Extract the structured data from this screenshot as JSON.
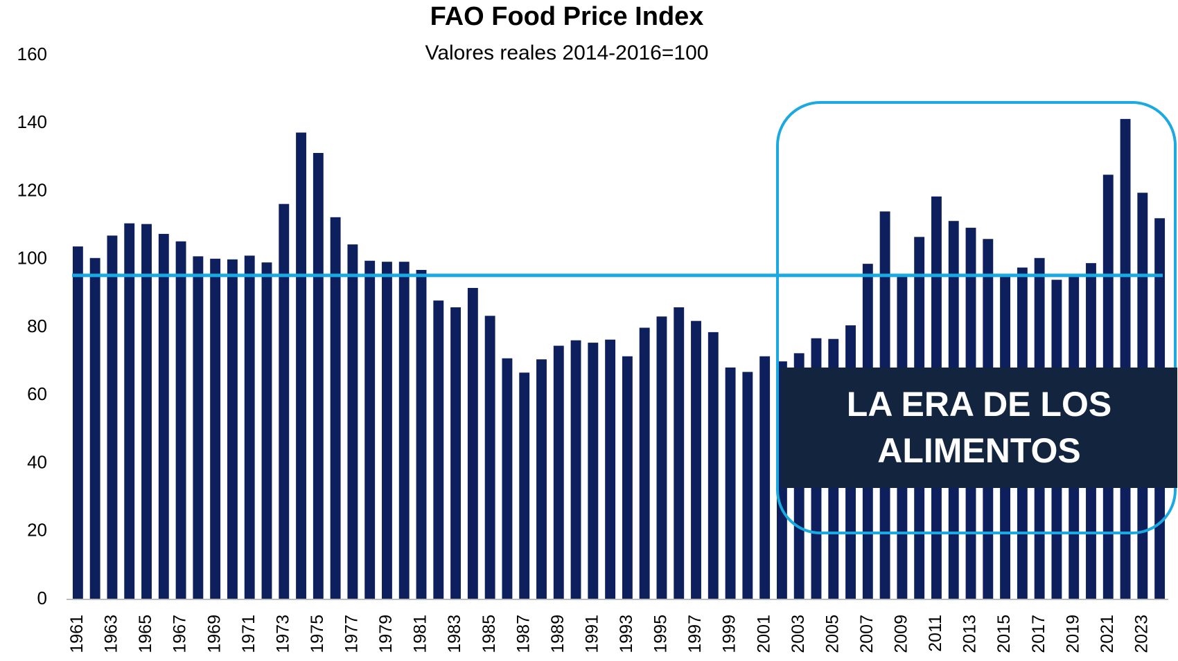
{
  "chart_data": {
    "type": "bar",
    "title": "FAO Food Price Index",
    "subtitle": "Valores reales 2014-2016=100",
    "categories": [
      "1961",
      null,
      "1963",
      null,
      "1965",
      null,
      "1967",
      null,
      "1969",
      null,
      "1971",
      null,
      "1973",
      null,
      "1975",
      null,
      "1977",
      null,
      "1979",
      null,
      "1981",
      null,
      "1983",
      null,
      "1985",
      null,
      "1987",
      null,
      "1989",
      null,
      "1991",
      null,
      "1993",
      null,
      "1995",
      null,
      "1997",
      null,
      "1999",
      null,
      "2001",
      null,
      "2003",
      null,
      "2005",
      null,
      "2007",
      null,
      "2009",
      null,
      "2011",
      null,
      "2013",
      null,
      "2015",
      null,
      "2017",
      null,
      "2019",
      null,
      "2021",
      null,
      "2023",
      null
    ],
    "values": [
      103.8,
      100.4,
      107,
      110.6,
      110.4,
      107.5,
      105.3,
      100.9,
      100.2,
      100,
      101.1,
      99.1,
      116.3,
      137.3,
      131.3,
      112.4,
      104.4,
      99.6,
      99.3,
      99.3,
      96.9,
      87.9,
      85.9,
      91.6,
      83.4,
      70.9,
      66.7,
      70.6,
      74.6,
      76.2,
      75.5,
      76.4,
      71.5,
      79.9,
      83.2,
      85.9,
      81.9,
      78.6,
      68.2,
      66.9,
      71.5,
      70,
      72.4,
      76.8,
      76.6,
      80.6,
      98.7,
      114.1,
      95.4,
      106.6,
      118.5,
      111.3,
      109.3,
      106,
      95.1,
      97.6,
      100.4,
      94,
      95.1,
      98.9,
      124.9,
      141.3,
      119.6,
      112.1
    ],
    "color": "#0d1f5c",
    "reference_line": 95.3,
    "reference_color": "#1ba9e1",
    "ylim": [
      0,
      160
    ],
    "yticks": [
      0,
      20,
      40,
      60,
      80,
      100,
      120,
      140,
      160
    ],
    "annotation": "LA ERA DE LOS ALIMENTOS"
  }
}
